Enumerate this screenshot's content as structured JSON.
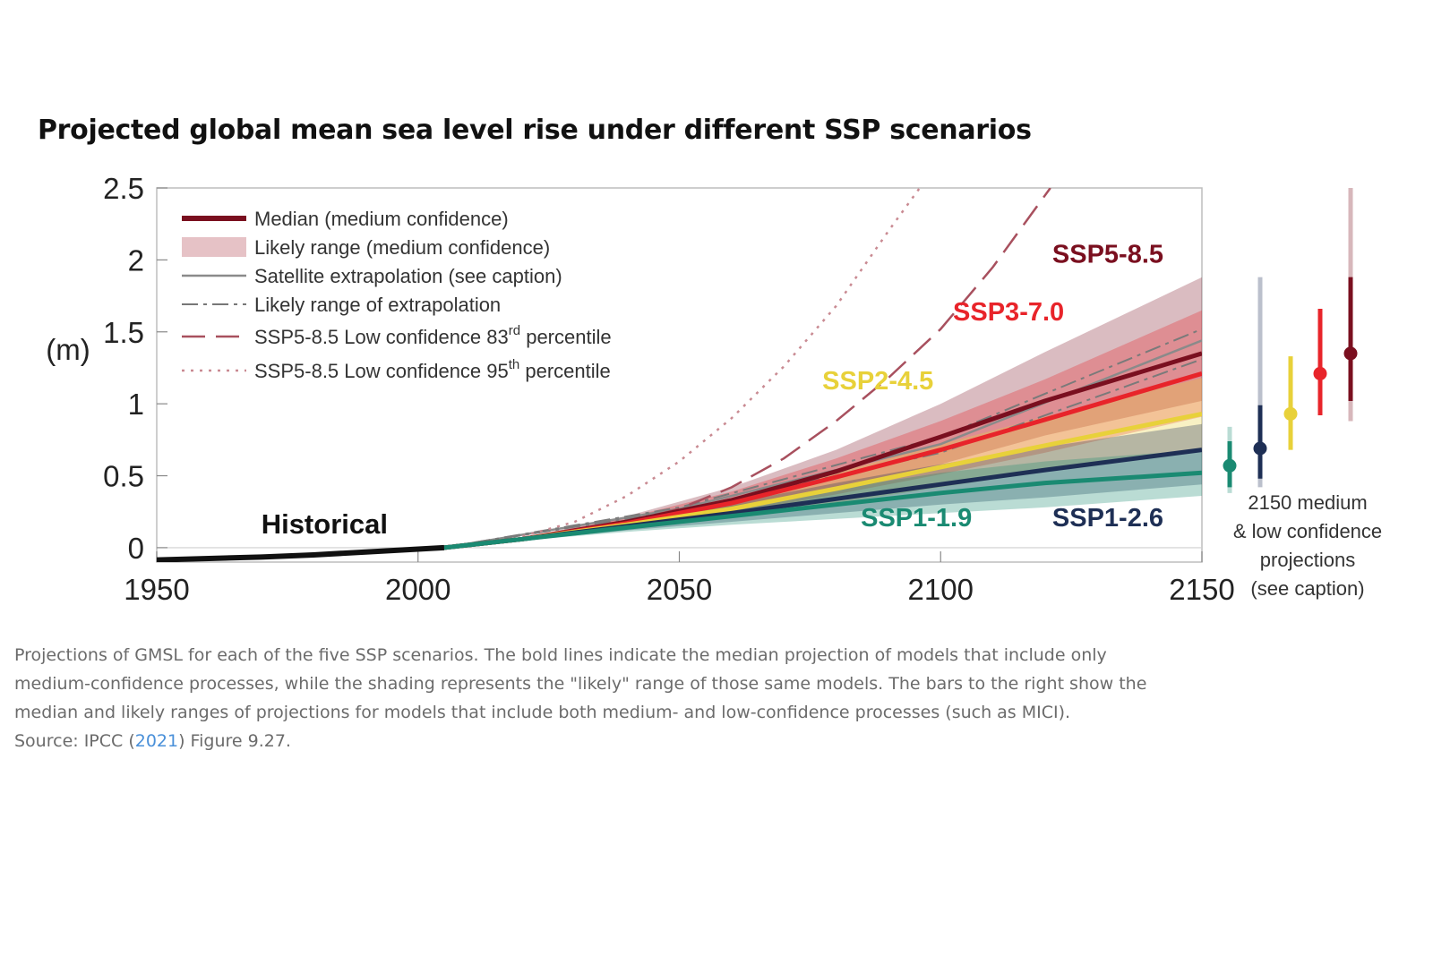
{
  "title": "Projected global mean sea level rise under different SSP scenarios",
  "chart_data": {
    "type": "line",
    "ylabel": "(m)",
    "xlim": [
      1950,
      2150
    ],
    "ylim": [
      -0.1,
      2.5
    ],
    "x_ticks": [
      "1950",
      "2000",
      "2050",
      "2100",
      "2150"
    ],
    "y_ticks": [
      "0",
      "0.5",
      "1",
      "1.5",
      "2",
      "2.5"
    ],
    "legend": [
      {
        "label": "Median (medium confidence)",
        "style": "median"
      },
      {
        "label": "Likely range (medium confidence)",
        "style": "band"
      },
      {
        "label": "Satellite extrapolation (see caption)",
        "style": "satellite"
      },
      {
        "label": "Likely range of extrapolation",
        "style": "dashdot"
      },
      {
        "label": "SSP5-8.5 Low confidence 83",
        "sup": "rd",
        "suffix": " percentile",
        "style": "dashed"
      },
      {
        "label": "SSP5-8.5 Low confidence 95",
        "sup": "th",
        "suffix": " percentile",
        "style": "dotted"
      }
    ],
    "historical": {
      "label": "Historical",
      "x": [
        1950,
        1960,
        1970,
        1980,
        1990,
        2000,
        2005
      ],
      "y": [
        -0.085,
        -0.075,
        -0.065,
        -0.05,
        -0.03,
        -0.01,
        0.0
      ]
    },
    "series": [
      {
        "name": "SSP1-1.9",
        "color": "#1a8a72",
        "x": [
          2005,
          2020,
          2040,
          2060,
          2080,
          2100,
          2120,
          2150
        ],
        "median": [
          0.0,
          0.06,
          0.14,
          0.22,
          0.3,
          0.38,
          0.45,
          0.52
        ],
        "low": [
          0.0,
          0.05,
          0.11,
          0.16,
          0.2,
          0.24,
          0.28,
          0.36
        ],
        "high": [
          0.0,
          0.07,
          0.17,
          0.29,
          0.41,
          0.52,
          0.6,
          0.68
        ],
        "bar_median": 0.57,
        "bar_likely": [
          0.42,
          0.74
        ],
        "bar_range": [
          0.38,
          0.84
        ]
      },
      {
        "name": "SSP1-2.6",
        "color": "#1e2f55",
        "x": [
          2005,
          2020,
          2040,
          2060,
          2080,
          2100,
          2120,
          2150
        ],
        "median": [
          0.0,
          0.06,
          0.15,
          0.24,
          0.34,
          0.44,
          0.54,
          0.68
        ],
        "low": [
          0.0,
          0.05,
          0.12,
          0.18,
          0.24,
          0.3,
          0.35,
          0.44
        ],
        "high": [
          0.0,
          0.07,
          0.18,
          0.31,
          0.45,
          0.58,
          0.7,
          0.86
        ],
        "bar_median": 0.69,
        "bar_likely": [
          0.48,
          0.99
        ],
        "bar_range": [
          0.42,
          1.88
        ]
      },
      {
        "name": "SSP2-4.5",
        "color": "#e8d13a",
        "x": [
          2005,
          2020,
          2040,
          2060,
          2080,
          2100,
          2120,
          2150
        ],
        "median": [
          0.0,
          0.06,
          0.16,
          0.27,
          0.41,
          0.56,
          0.71,
          0.93
        ],
        "low": [
          0.0,
          0.05,
          0.13,
          0.21,
          0.31,
          0.42,
          0.53,
          0.67
        ],
        "high": [
          0.0,
          0.07,
          0.19,
          0.34,
          0.52,
          0.72,
          0.91,
          1.18
        ],
        "bar_median": 0.93,
        "bar_likely": [
          0.68,
          1.33
        ],
        "bar_range": [
          0.68,
          1.33
        ]
      },
      {
        "name": "SSP3-7.0",
        "color": "#e8242a",
        "x": [
          2005,
          2020,
          2040,
          2060,
          2080,
          2100,
          2120,
          2150
        ],
        "median": [
          0.0,
          0.06,
          0.17,
          0.31,
          0.49,
          0.68,
          0.89,
          1.21
        ],
        "low": [
          0.0,
          0.05,
          0.14,
          0.24,
          0.37,
          0.51,
          0.66,
          0.91
        ],
        "high": [
          0.0,
          0.07,
          0.21,
          0.39,
          0.62,
          0.88,
          1.17,
          1.65
        ],
        "bar_median": 1.21,
        "bar_likely": [
          0.92,
          1.66
        ],
        "bar_range": [
          0.92,
          1.66
        ]
      },
      {
        "name": "SSP5-8.5",
        "color": "#7a0f1f",
        "x": [
          2005,
          2020,
          2040,
          2060,
          2080,
          2100,
          2120,
          2150
        ],
        "median": [
          0.0,
          0.06,
          0.18,
          0.33,
          0.53,
          0.77,
          1.02,
          1.35
        ],
        "low": [
          0.0,
          0.05,
          0.15,
          0.26,
          0.41,
          0.58,
          0.78,
          1.02
        ],
        "high": [
          0.0,
          0.07,
          0.22,
          0.42,
          0.68,
          1.0,
          1.36,
          1.88
        ],
        "bar_median": 1.35,
        "bar_likely": [
          1.02,
          1.88
        ],
        "bar_range": [
          0.88,
          2.5
        ]
      }
    ],
    "satellite_extrapolation": {
      "x": [
        2005,
        2050,
        2100,
        2150
      ],
      "median": [
        0.0,
        0.27,
        0.72,
        1.44
      ],
      "low": [
        0.0,
        0.26,
        0.66,
        1.31
      ],
      "high": [
        0.0,
        0.28,
        0.77,
        1.52
      ]
    },
    "ssp585_p83": {
      "x": [
        2020,
        2030,
        2040,
        2050,
        2060,
        2070,
        2080,
        2090,
        2100,
        2110,
        2121
      ],
      "y": [
        0.07,
        0.12,
        0.18,
        0.27,
        0.42,
        0.62,
        0.88,
        1.18,
        1.52,
        1.95,
        2.5
      ]
    },
    "ssp585_p95": {
      "x": [
        2020,
        2030,
        2040,
        2050,
        2060,
        2070,
        2080,
        2090,
        2096
      ],
      "y": [
        0.08,
        0.18,
        0.36,
        0.6,
        0.9,
        1.26,
        1.68,
        2.2,
        2.5
      ]
    }
  },
  "side_note": [
    "2150 medium",
    "& low confidence",
    "projections",
    "(see caption)"
  ],
  "caption": {
    "text": "Projections of GMSL for each of the five SSP scenarios. The bold lines indicate the median projection of models that include only medium-confidence processes, while the shading represents the \"likely\" range of those same models. The bars to the right show the median and likely ranges of projections for models that include both medium- and low-confidence processes (such as MICI).",
    "source_prefix": "Source: IPCC (",
    "source_link": "2021",
    "source_suffix": ") Figure 9.27."
  }
}
